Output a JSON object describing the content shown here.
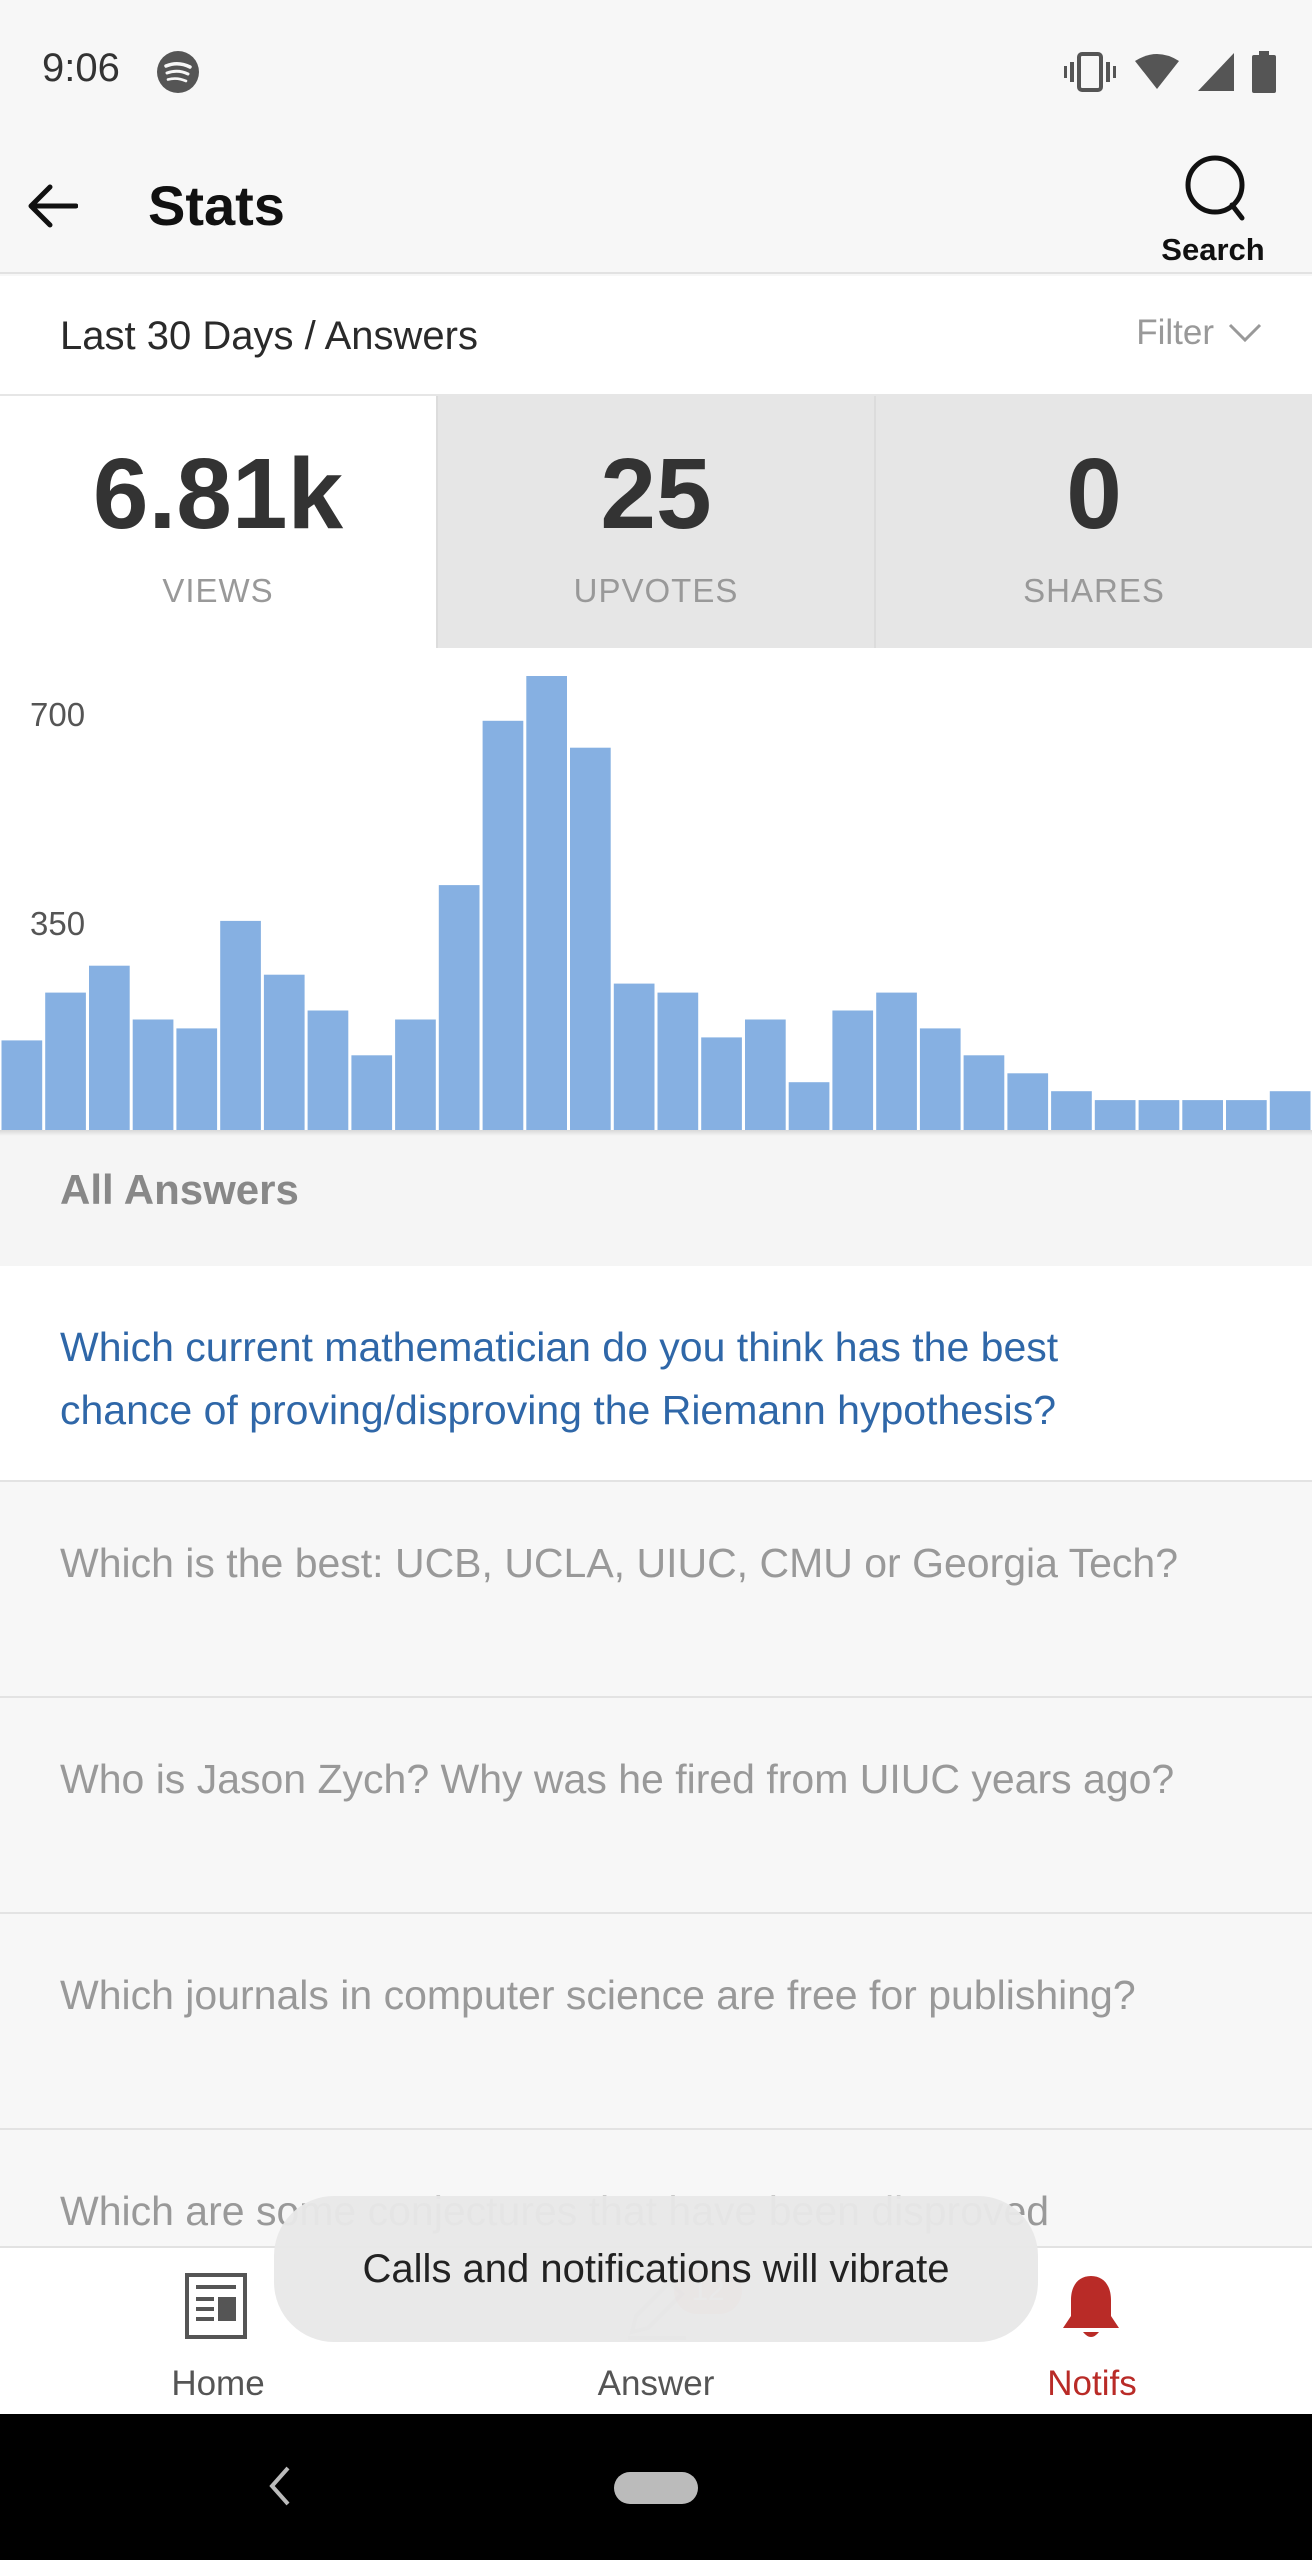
{
  "status_bar": {
    "time": "9:06",
    "icons": [
      "spotify-icon",
      "vibrate-icon",
      "wifi-icon",
      "signal-icon",
      "battery-icon"
    ]
  },
  "app_bar": {
    "title": "Stats",
    "back_icon": "arrow-left-icon",
    "search_label": "Search"
  },
  "range": {
    "title": "Last 30 Days / Answers",
    "filter_label": "Filter"
  },
  "stats": [
    {
      "value": "6.81k",
      "label": "VIEWS",
      "active": true
    },
    {
      "value": "25",
      "label": "UPVOTES",
      "active": false
    },
    {
      "value": "0",
      "label": "SHARES",
      "active": false
    }
  ],
  "chart_data": {
    "type": "bar",
    "series_label": "",
    "color": "#86b0e2",
    "yticks": [
      350,
      700
    ],
    "ylim": [
      0,
      760
    ],
    "values": [
      150,
      230,
      275,
      185,
      170,
      350,
      260,
      200,
      125,
      185,
      410,
      685,
      760,
      640,
      245,
      230,
      155,
      185,
      80,
      200,
      230,
      170,
      125,
      95,
      65,
      50,
      50,
      50,
      50,
      65
    ]
  },
  "section": {
    "title": "All Answers"
  },
  "answers": [
    "Which current mathematician do you think has the best chance of proving/disproving the Riemann hypothesis?",
    "Which is the best: UCB, UCLA, UIUC, CMU or Georgia Tech?",
    "Who is Jason Zych? Why was he fired from UIUC years ago?",
    "Which journals in computer science are free for publishing?",
    "Which are some conjectures that have been disproved"
  ],
  "bottom_nav": {
    "home": "Home",
    "answer": "Answer",
    "answer_badge": "12",
    "notifs": "Notifs",
    "accent": "#b92b27"
  },
  "toast": {
    "text": "Calls and notifications will vibrate"
  }
}
